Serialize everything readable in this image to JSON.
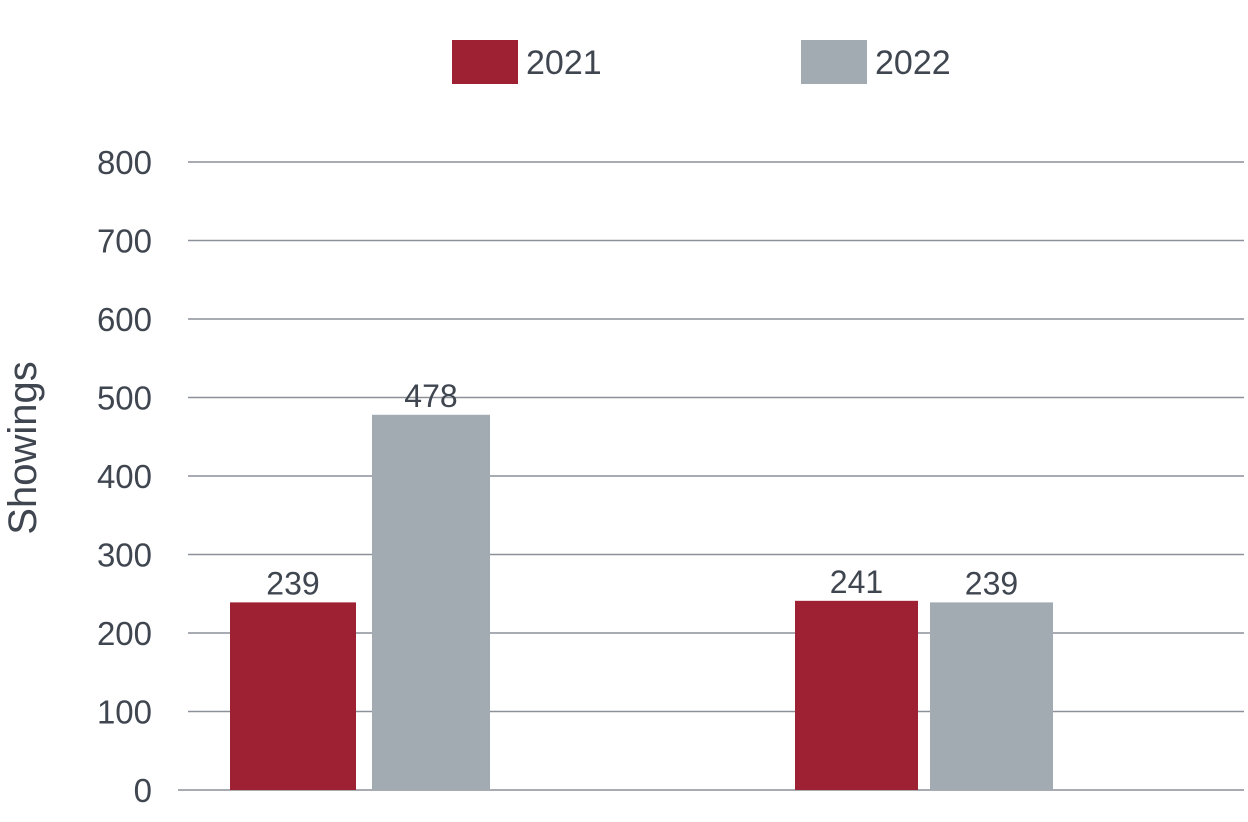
{
  "chart_data": {
    "type": "bar",
    "title": "",
    "xlabel": "",
    "ylabel": "Showings",
    "ylim": [
      0,
      800
    ],
    "yticks": [
      0,
      100,
      200,
      300,
      400,
      500,
      600,
      700,
      800
    ],
    "grid": true,
    "legend_position": "top-center",
    "categories": [
      "",
      ""
    ],
    "series": [
      {
        "name": "2021",
        "color": "#9e2133",
        "values": [
          239,
          241
        ]
      },
      {
        "name": "2022",
        "color": "#a2abb2",
        "values": [
          478,
          239
        ]
      }
    ]
  }
}
